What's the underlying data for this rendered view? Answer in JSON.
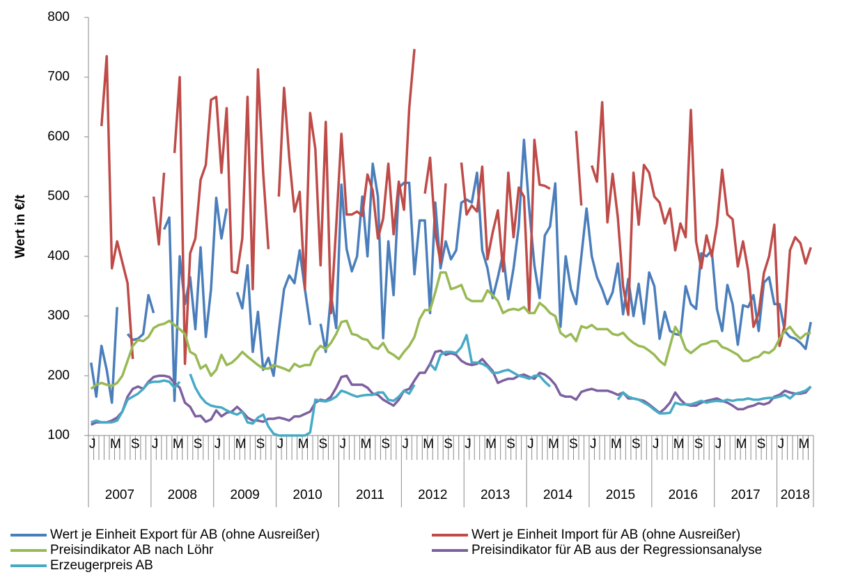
{
  "chart_data": {
    "type": "line",
    "y_label": "Wert  in €/t",
    "categories": [
      "J",
      null,
      null,
      null,
      "M",
      null,
      null,
      null,
      "S",
      null,
      null,
      null,
      "J",
      null,
      null,
      null,
      "M",
      null,
      null,
      null,
      "S",
      null,
      null,
      null,
      "J",
      null,
      null,
      null,
      "M",
      null,
      null,
      null,
      "S",
      null,
      null,
      null,
      "J",
      null,
      null,
      null,
      "M",
      null,
      null,
      null,
      "S",
      null,
      null,
      null,
      "J",
      null,
      null,
      null,
      "M",
      null,
      null,
      null,
      "S",
      null,
      null,
      null,
      "J",
      null,
      null,
      null,
      "M",
      null,
      null,
      null,
      "S",
      null,
      null,
      null,
      "J",
      null,
      null,
      null,
      "M",
      null,
      null,
      null,
      "S",
      null,
      null,
      null,
      "J",
      null,
      null,
      null,
      "M",
      null,
      null,
      null,
      "S",
      null,
      null,
      null,
      "J",
      null,
      null,
      null,
      "M",
      null,
      null,
      null,
      "S",
      null,
      null,
      null,
      "J",
      null,
      null,
      null,
      "M",
      null,
      null,
      null,
      "S",
      null,
      null,
      null,
      "J",
      null,
      null,
      null,
      "M",
      null,
      null,
      null,
      "S",
      null,
      null,
      null,
      "J",
      null,
      null,
      null,
      "M",
      null,
      null
    ],
    "x_groups": [
      "2007",
      "2008",
      "2009",
      "2010",
      "2011",
      "2012",
      "2013",
      "2014",
      "2015",
      "2016",
      "2017",
      "2018"
    ],
    "ylim": [
      100,
      800
    ],
    "yticks": [
      100,
      200,
      300,
      400,
      500,
      600,
      700,
      800
    ],
    "grid": false,
    "legend": "bottom",
    "series": [
      {
        "name": "Wert je Einheit Export für AB (ohne Ausreißer)",
        "color": "#4a7ebb",
        "values": [
          222,
          165,
          250,
          210,
          155,
          315,
          null,
          270,
          260,
          262,
          270,
          335,
          305,
          null,
          445,
          465,
          158,
          400,
          320,
          365,
          278,
          415,
          265,
          345,
          498,
          430,
          480,
          null,
          340,
          313,
          385,
          240,
          307,
          210,
          230,
          200,
          275,
          345,
          368,
          355,
          410,
          345,
          285,
          null,
          287,
          240,
          335,
          280,
          520,
          412,
          375,
          400,
          500,
          400,
          555,
          500,
          263,
          425,
          335,
          515,
          523,
          523,
          370,
          460,
          460,
          305,
          490,
          380,
          425,
          395,
          410,
          490,
          495,
          490,
          540,
          410,
          380,
          330,
          365,
          405,
          328,
          380,
          450,
          595,
          480,
          385,
          330,
          435,
          450,
          522,
          282,
          400,
          345,
          320,
          400,
          480,
          400,
          365,
          345,
          320,
          340,
          388,
          303,
          362,
          300,
          354,
          287,
          373,
          350,
          262,
          307,
          275,
          270,
          268,
          350,
          320,
          312,
          405,
          400,
          410,
          312,
          275,
          352,
          320,
          252,
          318,
          315,
          335,
          275,
          356,
          365,
          320,
          320,
          275,
          265,
          262,
          255,
          245,
          290
        ]
      },
      {
        "name": "Wert je Einheit Import für AB (ohne Ausreißer)",
        "color": "#be4b48",
        "values": [
          null,
          null,
          618,
          735,
          380,
          425,
          390,
          355,
          228,
          null,
          null,
          null,
          500,
          420,
          540,
          null,
          573,
          700,
          220,
          405,
          430,
          528,
          553,
          662,
          667,
          540,
          648,
          375,
          372,
          430,
          667,
          345,
          713,
          540,
          412,
          null,
          500,
          682,
          565,
          475,
          508,
          345,
          640,
          580,
          385,
          625,
          305,
          450,
          605,
          470,
          470,
          475,
          468,
          537,
          510,
          430,
          463,
          555,
          437,
          525,
          478,
          648,
          747,
          null,
          505,
          565,
          440,
          390,
          522,
          null,
          null,
          557,
          470,
          485,
          475,
          550,
          395,
          440,
          477,
          375,
          540,
          432,
          515,
          500,
          305,
          595,
          520,
          518,
          513,
          null,
          null,
          null,
          null,
          610,
          485,
          null,
          552,
          525,
          658,
          457,
          538,
          465,
          350,
          302,
          540,
          453,
          553,
          540,
          500,
          490,
          455,
          480,
          410,
          455,
          432,
          645,
          425,
          380,
          435,
          400,
          453,
          545,
          470,
          462,
          383,
          425,
          375,
          282,
          305,
          372,
          400,
          453,
          250,
          285,
          410,
          432,
          422,
          388,
          415
        ]
      },
      {
        "name": "Preisindikator AB nach Löhr",
        "color": "#98b954",
        "values": [
          178,
          185,
          188,
          185,
          183,
          188,
          200,
          225,
          250,
          260,
          258,
          265,
          280,
          285,
          287,
          292,
          285,
          278,
          270,
          240,
          235,
          212,
          218,
          200,
          210,
          235,
          218,
          222,
          230,
          240,
          232,
          225,
          218,
          212,
          212,
          218,
          215,
          212,
          208,
          220,
          215,
          218,
          218,
          240,
          250,
          245,
          255,
          270,
          290,
          292,
          270,
          268,
          262,
          260,
          248,
          245,
          255,
          240,
          235,
          228,
          240,
          250,
          265,
          295,
          310,
          310,
          340,
          373,
          373,
          345,
          348,
          352,
          330,
          325,
          325,
          325,
          343,
          335,
          325,
          305,
          310,
          312,
          310,
          315,
          305,
          305,
          322,
          315,
          305,
          300,
          272,
          265,
          270,
          258,
          283,
          280,
          285,
          278,
          278,
          278,
          270,
          268,
          272,
          262,
          255,
          250,
          248,
          242,
          235,
          225,
          218,
          250,
          282,
          268,
          245,
          238,
          245,
          252,
          254,
          258,
          258,
          248,
          245,
          240,
          235,
          225,
          225,
          230,
          232,
          240,
          238,
          245,
          262,
          275,
          282,
          270,
          262,
          270,
          272
        ]
      },
      {
        "name": "Preisindikator für AB aus der Regressionsanalyse",
        "color": "#7d60a0",
        "values": [
          118,
          122,
          122,
          122,
          125,
          130,
          140,
          165,
          178,
          182,
          178,
          190,
          198,
          200,
          200,
          198,
          188,
          180,
          155,
          148,
          132,
          133,
          123,
          127,
          142,
          132,
          138,
          140,
          148,
          140,
          130,
          125,
          125,
          123,
          128,
          128,
          130,
          128,
          125,
          132,
          132,
          136,
          140,
          155,
          160,
          158,
          165,
          180,
          198,
          200,
          185,
          185,
          185,
          180,
          170,
          168,
          160,
          155,
          150,
          160,
          175,
          178,
          192,
          205,
          205,
          220,
          240,
          242,
          235,
          238,
          235,
          225,
          220,
          218,
          220,
          228,
          218,
          208,
          188,
          192,
          195,
          195,
          200,
          202,
          198,
          195,
          205,
          202,
          195,
          185,
          168,
          165,
          165,
          160,
          173,
          176,
          178,
          175,
          175,
          175,
          172,
          168,
          172,
          162,
          162,
          160,
          158,
          152,
          145,
          138,
          145,
          155,
          172,
          160,
          152,
          150,
          150,
          155,
          158,
          160,
          162,
          158,
          155,
          150,
          144,
          144,
          148,
          150,
          154,
          152,
          155,
          165,
          168,
          175,
          172,
          170,
          170,
          172,
          182
        ]
      },
      {
        "name": "Erzeugerpreis AB",
        "color": "#46aac5",
        "values": [
          122,
          125,
          122,
          122,
          122,
          125,
          140,
          160,
          165,
          170,
          178,
          188,
          190,
          190,
          192,
          190,
          180,
          190,
          null,
          203,
          180,
          165,
          155,
          150,
          148,
          147,
          142,
          138,
          135,
          140,
          122,
          120,
          130,
          135,
          115,
          103,
          100,
          100,
          100,
          100,
          100,
          100,
          105,
          160,
          158,
          157,
          160,
          165,
          175,
          172,
          168,
          165,
          167,
          168,
          168,
          172,
          172,
          160,
          158,
          165,
          175,
          170,
          185,
          null,
          null,
          220,
          210,
          235,
          240,
          240,
          238,
          248,
          268,
          222,
          222,
          220,
          215,
          205,
          205,
          208,
          210,
          205,
          200,
          198,
          195,
          200,
          200,
          190,
          182,
          null,
          null,
          null,
          null,
          null,
          null,
          null,
          null,
          null,
          null,
          null,
          null,
          160,
          172,
          165,
          162,
          160,
          155,
          150,
          143,
          137,
          137,
          138,
          155,
          152,
          152,
          152,
          155,
          158,
          155,
          157,
          158,
          157,
          160,
          158,
          160,
          160,
          162,
          160,
          160,
          162,
          163,
          163,
          165,
          168,
          162,
          170,
          172,
          175,
          182
        ]
      }
    ]
  }
}
